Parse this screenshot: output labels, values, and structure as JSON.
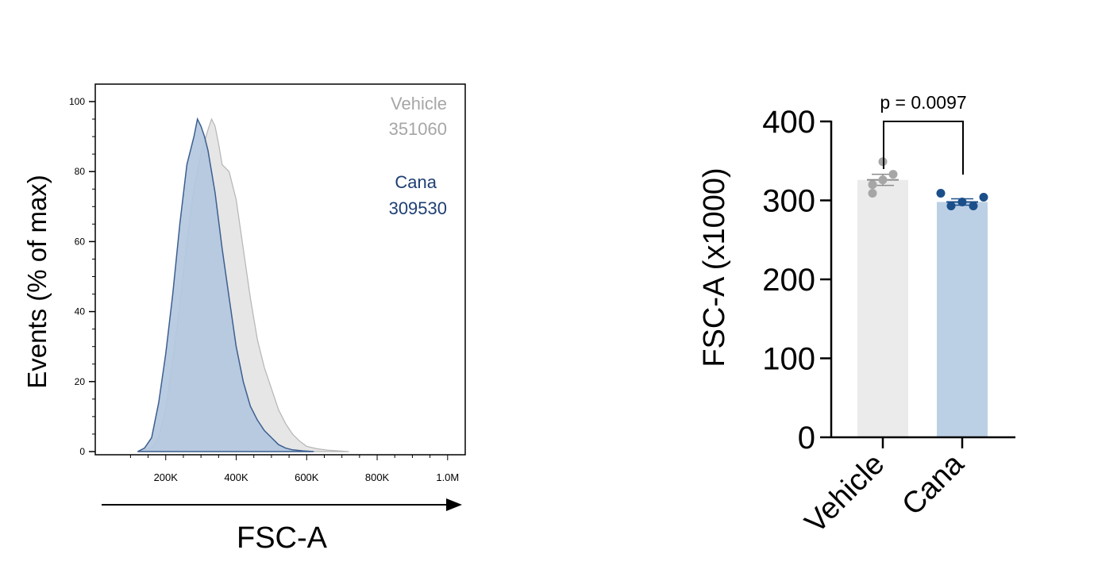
{
  "colors": {
    "vehicle_fill": "#e6e6e6",
    "vehicle_line": "#b5b5b5",
    "vehicle_text": "#a6a6a6",
    "cana_fill": "#b4c8df",
    "cana_line": "#3c5f8f",
    "cana_text": "#1f3f73",
    "axis": "#000000",
    "bar_vehicle": "#ebebeb",
    "bar_cana": "#bcd0e5",
    "dot_vehicle": "#a6a6a6",
    "dot_cana": "#1b4f8a"
  },
  "chart_data": [
    {
      "type": "area",
      "title": "",
      "xlabel": "FSC-A",
      "ylabel": "Events (% of max)",
      "xlim": [
        0,
        1050000
      ],
      "ylim": [
        0,
        100
      ],
      "x_ticks": [
        200000,
        400000,
        600000,
        800000,
        1000000
      ],
      "x_tick_labels": [
        "200K",
        "400K",
        "600K",
        "800K",
        "1.0M"
      ],
      "y_ticks": [
        0,
        20,
        40,
        60,
        80,
        100
      ],
      "y_tick_labels": [
        "0",
        "20",
        "40",
        "60",
        "80",
        "100"
      ],
      "legend": [
        {
          "name": "Vehicle",
          "value": "351060"
        },
        {
          "name": "Cana",
          "value": "309530"
        }
      ],
      "series": [
        {
          "name": "Vehicle",
          "x": [
            120000,
            160000,
            180000,
            200000,
            220000,
            240000,
            260000,
            280000,
            300000,
            320000,
            330000,
            340000,
            350000,
            360000,
            380000,
            400000,
            420000,
            440000,
            460000,
            480000,
            500000,
            520000,
            540000,
            560000,
            580000,
            600000,
            630000,
            660000,
            690000,
            720000
          ],
          "y": [
            0,
            1,
            4,
            12,
            26,
            42,
            60,
            75,
            85,
            92,
            95,
            93,
            88,
            82,
            80,
            72,
            58,
            44,
            32,
            24,
            18,
            12,
            8,
            5,
            3,
            1.5,
            0.8,
            0.4,
            0.2,
            0
          ]
        },
        {
          "name": "Cana",
          "x": [
            120000,
            140000,
            160000,
            180000,
            200000,
            220000,
            240000,
            260000,
            280000,
            290000,
            300000,
            310000,
            320000,
            340000,
            360000,
            380000,
            400000,
            420000,
            440000,
            460000,
            480000,
            500000,
            520000,
            540000,
            560000,
            590000,
            620000
          ],
          "y": [
            0,
            1,
            4,
            14,
            28,
            45,
            65,
            82,
            90,
            95,
            93,
            90,
            86,
            74,
            58,
            44,
            30,
            20,
            13,
            9,
            6,
            4,
            2,
            1,
            0.5,
            0.2,
            0
          ]
        }
      ]
    },
    {
      "type": "bar",
      "title": "",
      "xlabel": "",
      "ylabel": "FSC-A (x1000)",
      "ylim": [
        0,
        400
      ],
      "y_ticks": [
        0,
        100,
        200,
        300,
        400
      ],
      "y_tick_labels": [
        "0",
        "100",
        "200",
        "300",
        "400"
      ],
      "categories": [
        "Vehicle",
        "Cana"
      ],
      "values": [
        326,
        298
      ],
      "error": [
        7,
        4
      ],
      "points": [
        [
          349,
          333,
          326,
          320,
          309
        ],
        [
          309,
          304,
          298,
          293,
          293
        ]
      ],
      "annotation": "p = 0.0097"
    }
  ]
}
